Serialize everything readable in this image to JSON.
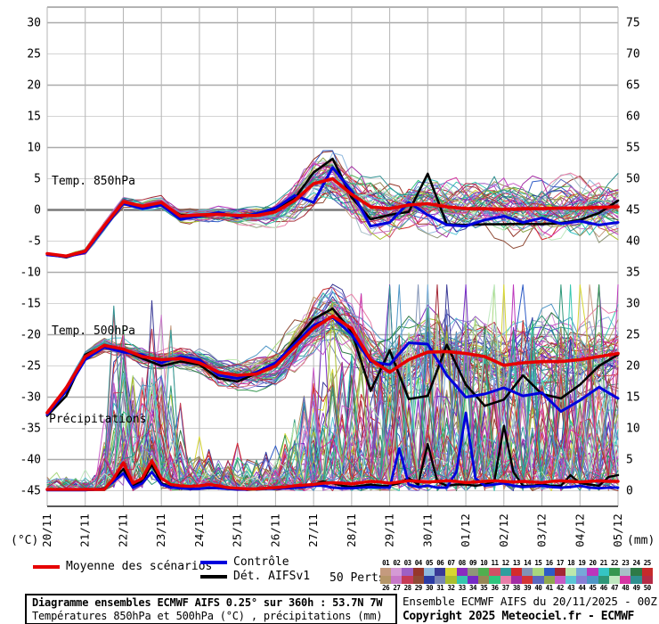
{
  "page": {
    "background": "#ffffff"
  },
  "chart_data": {
    "type": "line",
    "title": "Diagramme ensembles ECMWF AIFS 0.25° sur 360h : 53.7N 7W",
    "subtitle": "Températures 850hPa et 500hPa (°C) , précipitations (mm)",
    "x_tick_labels": [
      "20/11",
      "21/11",
      "22/11",
      "23/11",
      "24/11",
      "25/11",
      "26/11",
      "27/11",
      "28/11",
      "29/11",
      "30/11",
      "01/12",
      "02/12",
      "03/12",
      "04/12",
      "05/12"
    ],
    "x_axis_days": 15,
    "y_left": {
      "unit_label": "(°C)",
      "min": -45,
      "max": 30,
      "step": 5,
      "ticks": [
        30,
        25,
        20,
        15,
        10,
        5,
        0,
        -5,
        -10,
        -15,
        -20,
        -25,
        -30,
        -35,
        -40,
        -45
      ]
    },
    "y_right": {
      "unit_label": "(mm)",
      "min": 0,
      "max": 75,
      "step": 5,
      "ticks": [
        75,
        70,
        65,
        60,
        55,
        50,
        45,
        40,
        35,
        30,
        25,
        20,
        15,
        10,
        5,
        0
      ]
    },
    "grid": {
      "major_every": 10,
      "zero_line": true,
      "vertical_every_day": 1
    },
    "series_colors": {
      "mean": "#e60000",
      "control": "#0000dd",
      "det": "#000000"
    },
    "sample_interval_days": {
      "temp": 0.5,
      "precip": 0.25
    },
    "panels": [
      {
        "id": "t850",
        "label": "Temp. 850hPa",
        "series": {
          "mean": [
            -7.0,
            -7.4,
            -6.6,
            -2.5,
            1.3,
            0.6,
            1.2,
            -1.0,
            -0.8,
            -0.7,
            -0.9,
            -0.9,
            -0.3,
            1.5,
            4.2,
            5.0,
            2.5,
            0.5,
            0.2,
            0.8,
            1.0,
            0.5,
            0.2,
            0.2,
            0.1,
            0.2,
            0.2,
            0.3,
            0.3,
            0.4,
            0.5
          ],
          "control": [
            -7.2,
            -7.5,
            -6.8,
            -2.8,
            1.0,
            0.2,
            0.8,
            -1.5,
            -1.0,
            -0.4,
            -1.2,
            -0.6,
            0.3,
            2.3,
            1.2,
            6.8,
            3.0,
            -2.6,
            -2.0,
            1.2,
            -0.8,
            -2.4,
            -2.6,
            -1.6,
            -1.0,
            -2.0,
            -1.3,
            -2.2,
            -1.8,
            -2.4,
            -2.0
          ],
          "det": [
            -7.1,
            -7.6,
            -6.7,
            -2.6,
            1.2,
            0.4,
            1.0,
            -0.8,
            -1.0,
            -0.6,
            -1.1,
            -0.8,
            0.0,
            1.8,
            6.0,
            8.2,
            2.0,
            -1.5,
            -0.8,
            -0.3,
            5.8,
            -2.3,
            -2.4,
            -2.3,
            -2.3,
            -2.2,
            -2.3,
            -2.1,
            -1.6,
            -0.5,
            1.5
          ]
        },
        "spread_envelope": [
          [
            0,
            0.25
          ],
          [
            2,
            0.55
          ],
          [
            4,
            0.7
          ],
          [
            5.5,
            1.1
          ],
          [
            6.5,
            2.2
          ],
          [
            7.5,
            3.0
          ],
          [
            9,
            3.1
          ],
          [
            12,
            3.3
          ],
          [
            15,
            3.4
          ]
        ],
        "clamp": [
          -9.5,
          9.5
        ]
      },
      {
        "id": "t500",
        "label": "Temp. 500hPa",
        "series": {
          "mean": [
            -32.5,
            -28.5,
            -23.5,
            -21.7,
            -22.3,
            -23.5,
            -24.0,
            -23.8,
            -24.5,
            -26.0,
            -26.5,
            -26.3,
            -25.0,
            -22.0,
            -19.0,
            -17.0,
            -19.0,
            -24.0,
            -26.0,
            -24.0,
            -22.8,
            -22.7,
            -23.0,
            -23.5,
            -24.9,
            -24.5,
            -24.3,
            -24.3,
            -24.0,
            -23.5,
            -23.0
          ],
          "control": [
            -32.8,
            -29.0,
            -24.0,
            -22.0,
            -22.8,
            -23.2,
            -24.5,
            -23.5,
            -24.0,
            -26.5,
            -27.0,
            -26.0,
            -24.5,
            -21.5,
            -18.5,
            -17.2,
            -20.0,
            -24.3,
            -24.8,
            -21.3,
            -21.5,
            -26.5,
            -30.0,
            -29.5,
            -28.5,
            -29.8,
            -29.3,
            -32.3,
            -30.5,
            -28.4,
            -30.2
          ],
          "det": [
            -33.0,
            -29.8,
            -23.2,
            -21.8,
            -22.5,
            -23.8,
            -25.0,
            -24.3,
            -24.8,
            -27.0,
            -27.5,
            -26.2,
            -24.8,
            -21.0,
            -17.5,
            -15.8,
            -19.5,
            -29.0,
            -22.5,
            -30.3,
            -29.8,
            -21.6,
            -28.0,
            -31.4,
            -30.4,
            -26.5,
            -29.5,
            -30.2,
            -28.0,
            -25.0,
            -23.2
          ]
        },
        "spread_envelope": [
          [
            0,
            0.3
          ],
          [
            1,
            0.7
          ],
          [
            3,
            1.1
          ],
          [
            5,
            1.7
          ],
          [
            6.5,
            2.8
          ],
          [
            8,
            3.8
          ],
          [
            9.5,
            4.4
          ],
          [
            12,
            4.8
          ],
          [
            15,
            5.0
          ]
        ],
        "clamp": [
          -43.5,
          -11.0
        ]
      },
      {
        "id": "precip",
        "label": "Précipitations",
        "series": {
          "mean": [
            0.2,
            0.2,
            0.2,
            0.2,
            0.2,
            0.2,
            0.2,
            2.0,
            4.5,
            1.2,
            2.0,
            4.8,
            2.0,
            1.0,
            0.8,
            0.7,
            0.8,
            1.0,
            0.8,
            0.5,
            0.4,
            0.3,
            0.3,
            0.4,
            0.5,
            0.6,
            0.8,
            0.9,
            1.0,
            1.2,
            1.3,
            1.2,
            1.1,
            1.3,
            1.5,
            1.4,
            1.2,
            1.4,
            1.6,
            1.5,
            1.4,
            1.5,
            1.6,
            1.5,
            1.3,
            1.4,
            1.5,
            1.6,
            1.5,
            1.4,
            1.5,
            1.4,
            1.3,
            1.5,
            1.6,
            1.5,
            1.4,
            1.5,
            1.6,
            1.5,
            1.5
          ],
          "control": [
            0.1,
            0.1,
            0.1,
            0.1,
            0.1,
            0.2,
            0.3,
            1.5,
            2.8,
            0.5,
            1.2,
            3.0,
            1.0,
            0.5,
            0.4,
            0.3,
            0.3,
            0.5,
            0.4,
            0.3,
            0.2,
            0.2,
            0.3,
            0.3,
            0.3,
            0.4,
            0.5,
            0.6,
            0.8,
            0.8,
            0.5,
            0.4,
            0.4,
            0.5,
            0.6,
            0.5,
            0.5,
            6.8,
            1.0,
            0.6,
            0.8,
            0.5,
            0.5,
            3.0,
            12.5,
            2.0,
            0.8,
            1.0,
            1.2,
            0.8,
            0.6,
            0.7,
            0.8,
            0.6,
            0.5,
            0.6,
            0.8,
            0.5,
            0.4,
            0.5,
            0.5
          ],
          "det": [
            0.1,
            0.1,
            0.1,
            0.1,
            0.1,
            0.2,
            0.4,
            1.8,
            3.5,
            0.8,
            1.5,
            4.2,
            1.2,
            0.6,
            0.4,
            0.3,
            0.3,
            0.4,
            0.4,
            0.3,
            0.2,
            0.2,
            0.3,
            0.3,
            0.4,
            0.5,
            0.6,
            0.8,
            1.0,
            1.5,
            1.2,
            0.8,
            0.6,
            0.8,
            1.0,
            0.8,
            0.8,
            1.2,
            2.0,
            1.0,
            7.5,
            1.5,
            0.8,
            1.0,
            1.0,
            0.8,
            1.0,
            1.5,
            10.4,
            3.0,
            0.8,
            0.8,
            1.0,
            0.8,
            0.8,
            2.5,
            1.2,
            1.0,
            0.8,
            2.2,
            2.5
          ]
        },
        "spike_envelope": [
          [
            0,
            0.1
          ],
          [
            1.4,
            0.12
          ],
          [
            1.7,
            1.0
          ],
          [
            3.2,
            1.0
          ],
          [
            3.6,
            0.3
          ],
          [
            5.5,
            0.25
          ],
          [
            6.4,
            0.5
          ],
          [
            7,
            1.0
          ],
          [
            9,
            1.2
          ],
          [
            10,
            1.45
          ],
          [
            12,
            1.4
          ],
          [
            15,
            1.25
          ]
        ],
        "clamp": [
          0,
          33
        ]
      }
    ],
    "ensemble": {
      "count": 50,
      "colors": [
        "#c49a7e",
        "#d59ad5",
        "#9e60c4",
        "#96372b",
        "#8fb8de",
        "#3a3a96",
        "#d6d631",
        "#8a2bbf",
        "#8f9678",
        "#4fae4f",
        "#d05065",
        "#2e9e9e",
        "#d42b2b",
        "#8293b5",
        "#a8d87e",
        "#2e5bc6",
        "#a32633",
        "#bce8ac",
        "#76a8d8",
        "#bc35bc",
        "#35c4c4",
        "#35964f",
        "#a8bec6",
        "#2e7a46",
        "#c62b2b",
        "#b59668",
        "#c878c8",
        "#c63b55",
        "#8f4a35",
        "#2b3ba3",
        "#7885b5",
        "#aabf2e",
        "#35c6ae",
        "#762bc6",
        "#968755",
        "#2ec67e",
        "#e87ea8",
        "#a32ba3",
        "#d43535",
        "#5b68bf",
        "#8fa84f",
        "#c65bc6",
        "#5bc6d6",
        "#887ed6",
        "#4f96c6",
        "#2e9678",
        "#bfe8bf",
        "#d635a3",
        "#2e8f8f",
        "#b52b46"
      ]
    }
  },
  "legend": {
    "mean_label": "Moyenne des scénarios",
    "control_label": "Contrôle",
    "det_label": "Dét. AIFSv1",
    "perts_label": "50 Perts.",
    "member_numbers_top": [
      "01",
      "02",
      "03",
      "04",
      "05",
      "06",
      "07",
      "08",
      "09",
      "10",
      "11",
      "12",
      "13",
      "14",
      "15",
      "16",
      "17",
      "18",
      "19",
      "20",
      "21",
      "22",
      "23",
      "24",
      "25"
    ],
    "member_numbers_bottom": [
      "26",
      "27",
      "28",
      "29",
      "30",
      "31",
      "32",
      "33",
      "34",
      "35",
      "36",
      "37",
      "38",
      "39",
      "40",
      "41",
      "42",
      "43",
      "44",
      "45",
      "46",
      "47",
      "48",
      "49",
      "50"
    ]
  },
  "footer": {
    "title": "Diagramme ensembles ECMWF AIFS 0.25° sur 360h : 53.7N 7W",
    "subtitle": "Températures 850hPa et 500hPa (°C) , précipitations (mm)",
    "run_info": "Ensemble ECMWF AIFS du 20/11/2025 - 00Z",
    "copyright": "Copyright 2025 Meteociel.fr - ECMWF"
  }
}
